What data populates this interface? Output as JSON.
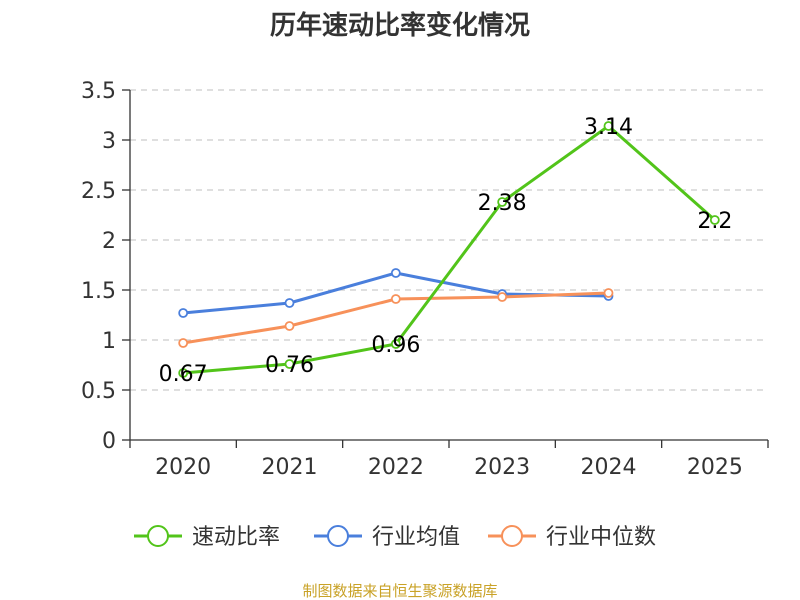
{
  "chart_data": {
    "type": "line",
    "title": "历年速动比率变化情况",
    "categories": [
      "2020",
      "2021",
      "2022",
      "2023",
      "2024",
      "2025"
    ],
    "ylim": [
      0,
      3.5
    ],
    "yticks": [
      "0",
      "0.5",
      "1",
      "1.5",
      "2",
      "2.5",
      "3",
      "3.5"
    ],
    "grid": true,
    "legend_position": "bottom",
    "series": [
      {
        "name": "速动比率",
        "color": "#52c41a",
        "values": [
          0.67,
          0.76,
          0.96,
          2.38,
          3.14,
          2.2
        ],
        "labels": [
          "0.67",
          "0.76",
          "0.96",
          "2.38",
          "3.14",
          "2.2"
        ]
      },
      {
        "name": "行业均值",
        "color": "#4a7fdc",
        "values": [
          1.27,
          1.37,
          1.67,
          1.46,
          1.44,
          null
        ]
      },
      {
        "name": "行业中位数",
        "color": "#f7915a",
        "values": [
          0.97,
          1.14,
          1.41,
          1.43,
          1.47,
          null
        ]
      }
    ]
  },
  "source": "制图数据来自恒生聚源数据库"
}
